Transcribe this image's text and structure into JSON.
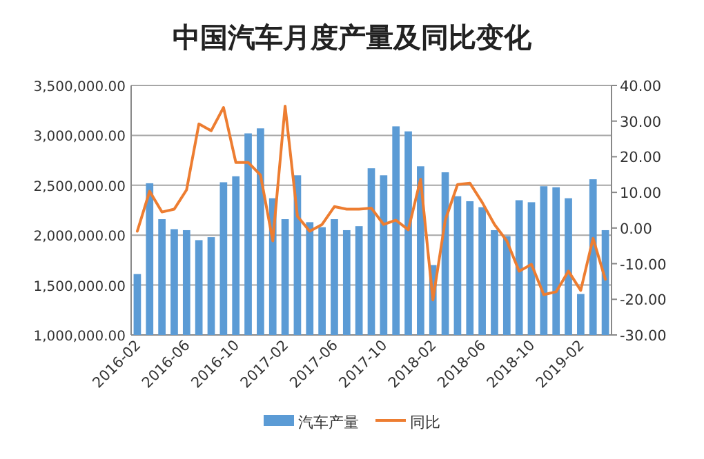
{
  "chart_data": {
    "type": "bar",
    "title": "中国汽车月度产量及同比变化",
    "categories": [
      "2016-02",
      null,
      null,
      null,
      "2016-06",
      null,
      null,
      null,
      "2016-10",
      null,
      null,
      null,
      "2017-02",
      null,
      null,
      null,
      "2017-06",
      null,
      null,
      null,
      "2017-10",
      null,
      null,
      null,
      "2018-02",
      null,
      null,
      null,
      "2018-06",
      null,
      null,
      null,
      "2018-10",
      null,
      null,
      null,
      "2019-02",
      null,
      null
    ],
    "series": [
      {
        "name": "汽车产量",
        "color": "#5b9bd5",
        "values": [
          1610000,
          2520000,
          2160000,
          2060000,
          2050000,
          1950000,
          1980000,
          2530000,
          2590000,
          3020000,
          3070000,
          2370000,
          2160000,
          2600000,
          2130000,
          2080000,
          2160000,
          2050000,
          2090000,
          2670000,
          2600000,
          3090000,
          3040000,
          2690000,
          1700000,
          2630000,
          2390000,
          2340000,
          2280000,
          2050000,
          1990000,
          2350000,
          2330000,
          2490000,
          2480000,
          2370000,
          1410000,
          2560000,
          2050000
        ]
      },
      {
        "name": "同比",
        "type": "line",
        "axis": "y2",
        "color": "#ed7d31",
        "values": [
          -0.9,
          10.3,
          4.5,
          5.3,
          10.7,
          29.2,
          27.3,
          33.8,
          18.4,
          18.4,
          14.9,
          -3.6,
          34.2,
          3.3,
          -0.9,
          1.0,
          6.0,
          5.3,
          5.3,
          5.6,
          1.0,
          2.2,
          -0.5,
          13.7,
          -20.2,
          2.2,
          12.2,
          12.6,
          7.2,
          1.0,
          -3.6,
          -12.1,
          -10.2,
          -18.7,
          -17.9,
          -12.1,
          -17.5,
          -2.9,
          -14.4
        ]
      }
    ],
    "ylim": [
      1000000,
      3500000
    ],
    "yticks": [
      {
        "value": 1000000,
        "label": "1,000,000.00"
      },
      {
        "value": 1500000,
        "label": "1,500,000.00"
      },
      {
        "value": 2000000,
        "label": "2,000,000.00"
      },
      {
        "value": 2500000,
        "label": "2,500,000.00"
      },
      {
        "value": 3000000,
        "label": "3,000,000.00"
      },
      {
        "value": 3500000,
        "label": "3,500,000.00"
      }
    ],
    "y2lim": [
      -30,
      40
    ],
    "y2ticks": [
      {
        "value": -30,
        "label": "-30.00"
      },
      {
        "value": -20,
        "label": "-20.00"
      },
      {
        "value": -10,
        "label": "-10.00"
      },
      {
        "value": 0,
        "label": "0.00"
      },
      {
        "value": 10,
        "label": "10.00"
      },
      {
        "value": 20,
        "label": "20.00"
      },
      {
        "value": 30,
        "label": "30.00"
      },
      {
        "value": 40,
        "label": "40.00"
      }
    ],
    "grid": "y",
    "legend": "bottom"
  }
}
